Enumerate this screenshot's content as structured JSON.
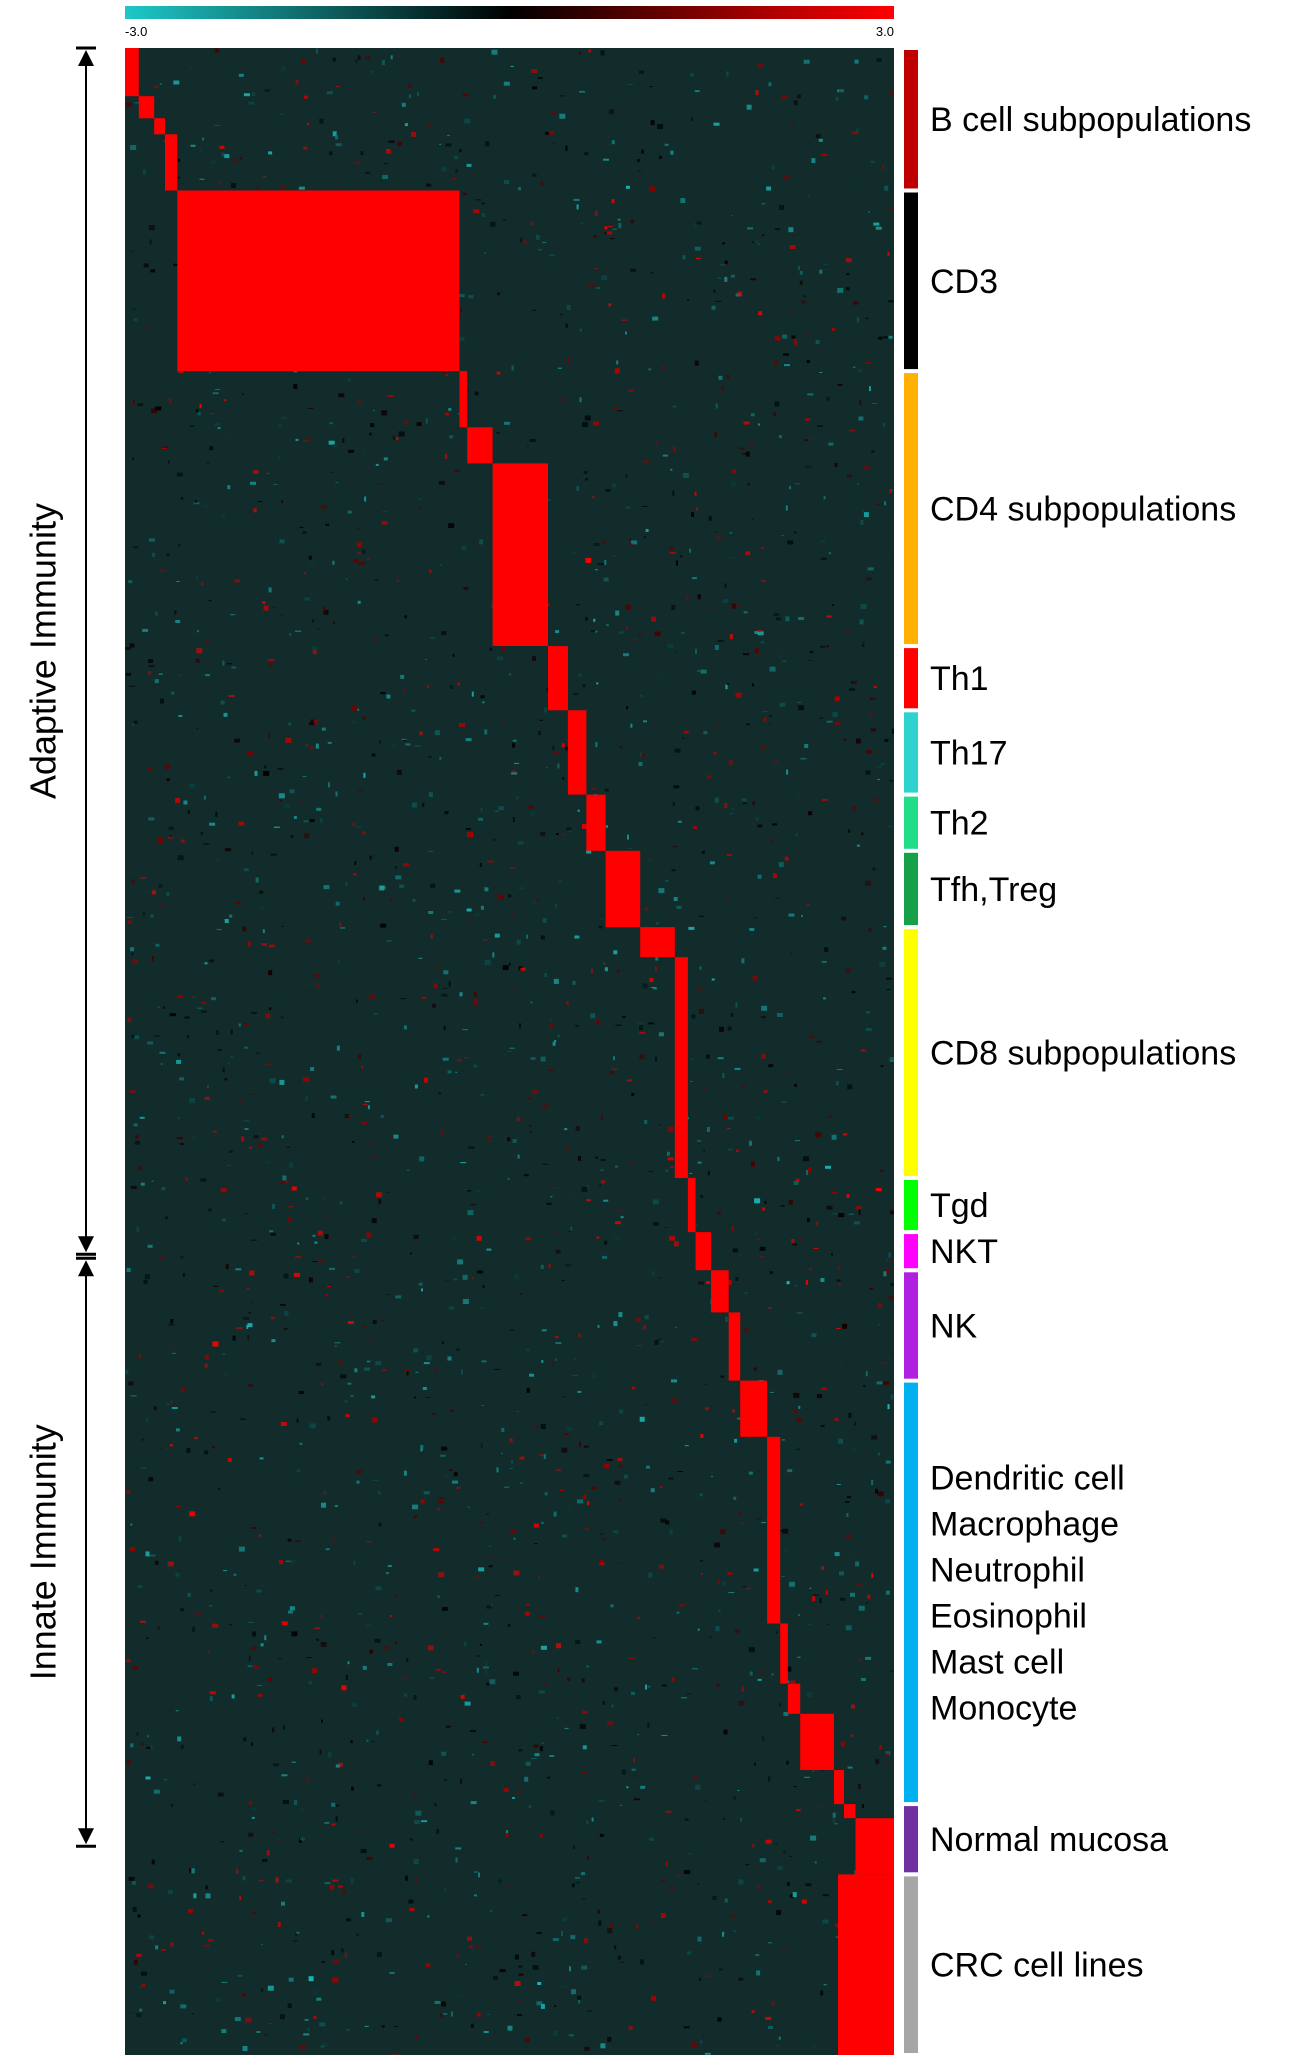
{
  "chart_data": {
    "type": "heatmap",
    "title": "",
    "xlabel": "",
    "ylabel": "",
    "color_scale": {
      "min": -3.0,
      "max": 3.0,
      "min_label": "-3.0",
      "max_label": "3.0",
      "low_color": "#1ec8c8",
      "mid_color": "#000000",
      "high_color": "#ff0000"
    },
    "background_color": "#122c2c",
    "block_value": 3.0,
    "immunity_groups": [
      {
        "label": "Adaptive Immunity",
        "row_start": 0.0,
        "row_end": 0.602
      },
      {
        "label": "Innate Immunity",
        "row_start": 0.602,
        "row_end": 0.896
      }
    ],
    "cell_groups": [
      {
        "label": "B cell subpopulations",
        "color": "#c00000",
        "row_start": 0.0,
        "row_end": 0.071,
        "diagonal_blocks": [
          [
            0.0,
            0.024,
            0.0,
            0.018
          ],
          [
            0.024,
            0.035,
            0.018,
            0.038
          ],
          [
            0.035,
            0.043,
            0.038,
            0.052
          ],
          [
            0.043,
            0.071,
            0.052,
            0.068
          ]
        ]
      },
      {
        "label": "CD3",
        "color": "#000000",
        "row_start": 0.071,
        "row_end": 0.161,
        "diagonal_blocks": [
          [
            0.071,
            0.161,
            0.068,
            0.435
          ]
        ]
      },
      {
        "label": "CD4 subpopulations",
        "color": "#ffb000",
        "row_start": 0.161,
        "row_end": 0.298,
        "diagonal_blocks": [
          [
            0.161,
            0.189,
            0.435,
            0.445
          ],
          [
            0.189,
            0.207,
            0.445,
            0.478
          ],
          [
            0.207,
            0.298,
            0.478,
            0.55
          ]
        ]
      },
      {
        "label": "Th1",
        "color": "#ff0000",
        "row_start": 0.298,
        "row_end": 0.33,
        "diagonal_blocks": [
          [
            0.298,
            0.33,
            0.55,
            0.576
          ]
        ]
      },
      {
        "label": "Th17",
        "color": "#2ed3cf",
        "row_start": 0.33,
        "row_end": 0.372,
        "diagonal_blocks": [
          [
            0.33,
            0.372,
            0.576,
            0.6
          ]
        ]
      },
      {
        "label": "Th2",
        "color": "#22dd88",
        "row_start": 0.372,
        "row_end": 0.4,
        "diagonal_blocks": [
          [
            0.372,
            0.4,
            0.6,
            0.625
          ]
        ]
      },
      {
        "label": "Tfh,Treg",
        "color": "#16a048",
        "row_start": 0.4,
        "row_end": 0.438,
        "diagonal_blocks": [
          [
            0.4,
            0.438,
            0.625,
            0.67
          ]
        ]
      },
      {
        "label": "CD8 subpopulations",
        "color": "#ffff00",
        "row_start": 0.438,
        "row_end": 0.563,
        "diagonal_blocks": [
          [
            0.438,
            0.453,
            0.67,
            0.715
          ],
          [
            0.453,
            0.563,
            0.715,
            0.732
          ]
        ]
      },
      {
        "label": "Tgd",
        "color": "#00ff00",
        "row_start": 0.563,
        "row_end": 0.59,
        "diagonal_blocks": [
          [
            0.563,
            0.59,
            0.732,
            0.742
          ]
        ]
      },
      {
        "label": "NKT",
        "color": "#ff00ff",
        "row_start": 0.59,
        "row_end": 0.609,
        "diagonal_blocks": [
          [
            0.59,
            0.609,
            0.742,
            0.762
          ]
        ]
      },
      {
        "label": "NK",
        "color": "#b020e0",
        "row_start": 0.609,
        "row_end": 0.664,
        "diagonal_blocks": [
          [
            0.609,
            0.63,
            0.762,
            0.785
          ],
          [
            0.63,
            0.664,
            0.785,
            0.8
          ]
        ]
      },
      {
        "label": "Dendritic cell\nMacrophage\nNeutrophil\nEosinophil\nMast cell\nMonocyte",
        "color": "#00b0f0",
        "row_start": 0.664,
        "row_end": 0.875,
        "diagonal_blocks": [
          [
            0.664,
            0.692,
            0.8,
            0.835
          ],
          [
            0.692,
            0.785,
            0.835,
            0.852
          ],
          [
            0.785,
            0.815,
            0.852,
            0.862
          ],
          [
            0.815,
            0.83,
            0.862,
            0.878
          ],
          [
            0.83,
            0.858,
            0.878,
            0.922
          ],
          [
            0.858,
            0.875,
            0.922,
            0.935
          ]
        ]
      },
      {
        "label": "Normal mucosa",
        "color": "#7030a0",
        "row_start": 0.875,
        "row_end": 0.91,
        "diagonal_blocks": [
          [
            0.875,
            0.882,
            0.935,
            0.95
          ],
          [
            0.882,
            0.91,
            0.95,
            1.0
          ]
        ]
      },
      {
        "label": "CRC cell lines",
        "color": "#a6a6a6",
        "row_start": 0.91,
        "row_end": 1.0,
        "diagonal_blocks": [
          [
            0.91,
            1.0,
            1.0,
            1.0
          ]
        ]
      }
    ]
  }
}
